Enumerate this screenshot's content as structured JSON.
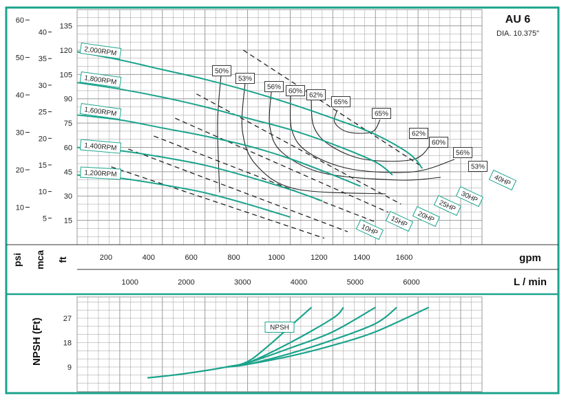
{
  "header": {
    "model": "AU 6",
    "diameter": "DIA. 10.375\""
  },
  "axes": {
    "psi_label": "psi",
    "mca_label": "mca",
    "ft_label": "ft",
    "gpm_label": "gpm",
    "lmin_label": "L / min",
    "npsh_label": "NPSH (Ft)",
    "psi_ticks": [
      "60",
      "50",
      "40",
      "30",
      "20",
      "10"
    ],
    "mca_ticks": [
      "40",
      "35",
      "30",
      "25",
      "20",
      "15",
      "10",
      "5"
    ],
    "ft_ticks": [
      "135",
      "120",
      "105",
      "90",
      "75",
      "60",
      "45",
      "30",
      "15"
    ],
    "gpm_ticks": [
      "200",
      "400",
      "600",
      "800",
      "1000",
      "1200",
      "1400",
      "1600"
    ],
    "lmin_ticks": [
      "1000",
      "2000",
      "3000",
      "4000",
      "5000",
      "6000"
    ],
    "npsh_ticks": [
      "27",
      "18",
      "9"
    ]
  },
  "colors": {
    "curve": "#1aa38c",
    "frame": "#1aa38c",
    "grid": "#9a9a9a",
    "hp_line": "#222222",
    "eff_line": "#222222"
  },
  "npsh_tag": "NPSH",
  "chart_data": [
    {
      "type": "line",
      "title": "AU 6",
      "subtitle": "DIA. 10.375\"",
      "xlabel": "gpm",
      "ylabel": "ft",
      "xlim": [
        0,
        1900
      ],
      "ylim": [
        0,
        145
      ],
      "series": [
        {
          "name": "2,000RPM",
          "x": [
            0,
            200,
            400,
            600,
            800,
            1000,
            1200,
            1400,
            1560,
            1620
          ],
          "y": [
            119,
            114,
            108,
            102,
            95,
            87,
            78,
            68,
            56,
            47
          ]
        },
        {
          "name": "1,800RPM",
          "x": [
            0,
            200,
            400,
            600,
            800,
            1000,
            1200,
            1400,
            1480
          ],
          "y": [
            100,
            96,
            91,
            85,
            78,
            71,
            62,
            51,
            43
          ]
        },
        {
          "name": "1,600RPM",
          "x": [
            0,
            200,
            400,
            600,
            800,
            1000,
            1200,
            1330
          ],
          "y": [
            80,
            77,
            72,
            67,
            61,
            53,
            43,
            36
          ]
        },
        {
          "name": "1,400RPM",
          "x": [
            0,
            200,
            400,
            600,
            800,
            1000,
            1150
          ],
          "y": [
            60,
            58,
            54,
            49,
            42,
            34,
            27
          ]
        },
        {
          "name": "1,200RPM",
          "x": [
            0,
            200,
            400,
            600,
            800,
            1000
          ],
          "y": [
            43,
            41,
            37,
            32,
            25,
            17
          ]
        }
      ],
      "efficiency_labels": [
        "50%",
        "53%",
        "56%",
        "60%",
        "62%",
        "65%",
        "65%",
        "62%",
        "60%",
        "56%",
        "53%"
      ],
      "power_lines": [
        {
          "label": "40HP",
          "x": [
            780,
            1620
          ],
          "y": [
            120,
            48
          ]
        },
        {
          "label": "30HP",
          "x": [
            560,
            1520
          ],
          "y": [
            93,
            25
          ]
        },
        {
          "label": "25HP",
          "x": [
            460,
            1460
          ],
          "y": [
            78,
            20
          ]
        },
        {
          "label": "20HP",
          "x": [
            360,
            1400
          ],
          "y": [
            67,
            14
          ]
        },
        {
          "label": "15HP",
          "x": [
            240,
            1270
          ],
          "y": [
            59,
            8
          ]
        },
        {
          "label": "10HP",
          "x": [
            160,
            1160
          ],
          "y": [
            48,
            4
          ]
        }
      ]
    },
    {
      "type": "line",
      "title": "",
      "xlabel": "gpm",
      "ylabel": "NPSH (Ft)",
      "xlim": [
        0,
        1900
      ],
      "ylim": [
        0,
        36
      ],
      "series": [
        {
          "name": "NPSH",
          "x": [
            330,
            500,
            700,
            800,
            900,
            1000,
            1100
          ],
          "y": [
            5,
            6.5,
            9,
            11,
            17,
            24,
            31
          ]
        },
        {
          "name": "",
          "x": [
            700,
            800,
            1000,
            1200,
            1250
          ],
          "y": [
            9,
            10.5,
            18,
            27,
            31
          ]
        },
        {
          "name": "",
          "x": [
            700,
            800,
            1000,
            1200,
            1400
          ],
          "y": [
            9,
            10.5,
            16,
            22,
            31
          ]
        },
        {
          "name": "",
          "x": [
            700,
            800,
            1000,
            1200,
            1400,
            1500
          ],
          "y": [
            9,
            10,
            14,
            19,
            25,
            31
          ]
        },
        {
          "name": "",
          "x": [
            700,
            800,
            1000,
            1200,
            1400,
            1650
          ],
          "y": [
            9,
            10,
            13,
            17,
            22,
            31
          ]
        }
      ]
    }
  ]
}
